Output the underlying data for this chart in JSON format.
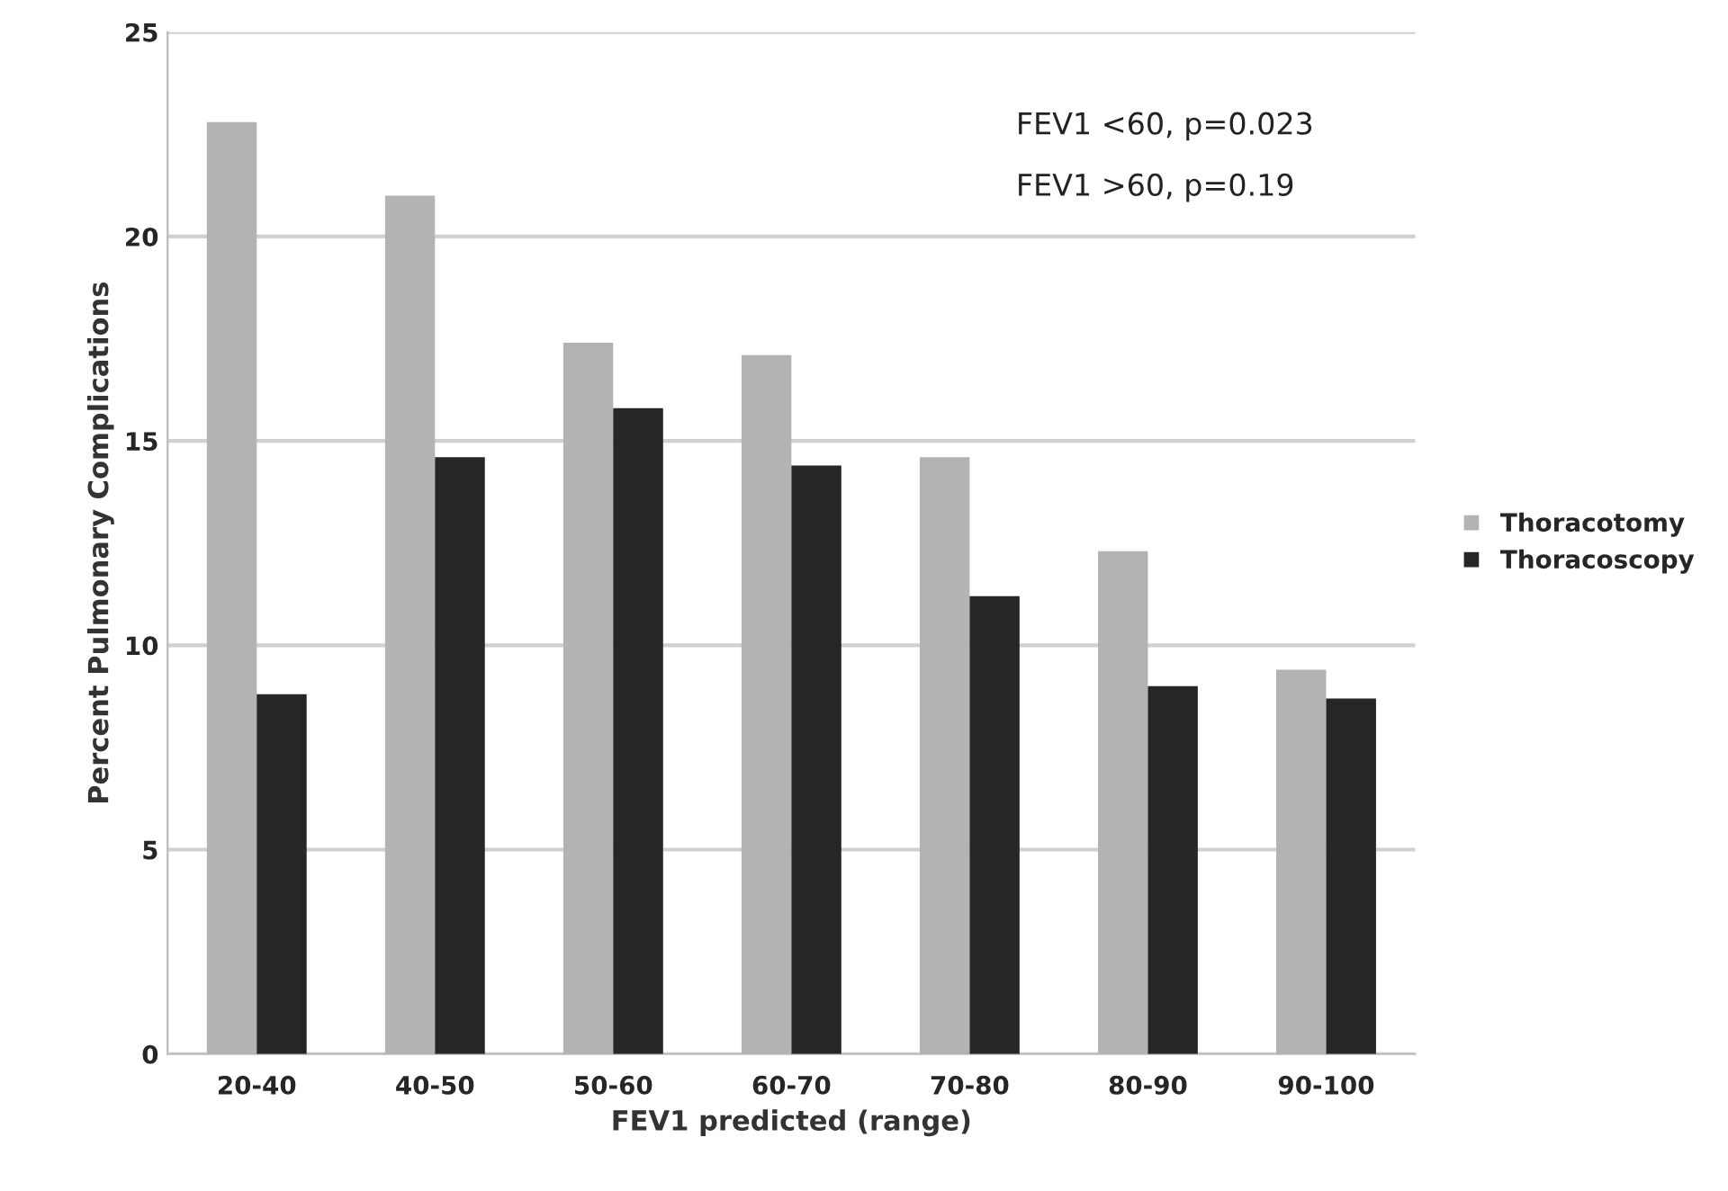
{
  "chart_data": {
    "type": "bar",
    "xlabel": "FEV1 predicted (range)",
    "ylabel": "Percent Pulmonary Complications",
    "categories": [
      "20-40",
      "40-50",
      "50-60",
      "60-70",
      "70-80",
      "80-90",
      "90-100"
    ],
    "series": [
      {
        "name": "Thoracotomy",
        "color": "#b3b3b3",
        "values": [
          22.8,
          21.0,
          17.4,
          17.1,
          14.6,
          12.3,
          9.4
        ]
      },
      {
        "name": "Thoracoscopy",
        "color": "#262626",
        "values": [
          8.8,
          14.6,
          15.8,
          14.4,
          11.2,
          9.0,
          8.7
        ]
      }
    ],
    "ylim": [
      0,
      25
    ],
    "yticks": [
      0,
      5,
      10,
      15,
      20,
      25
    ],
    "annotations": [
      "FEV1 <60, p=0.023",
      "FEV1 >60, p=0.19"
    ],
    "grid": "y",
    "legend": "right"
  }
}
